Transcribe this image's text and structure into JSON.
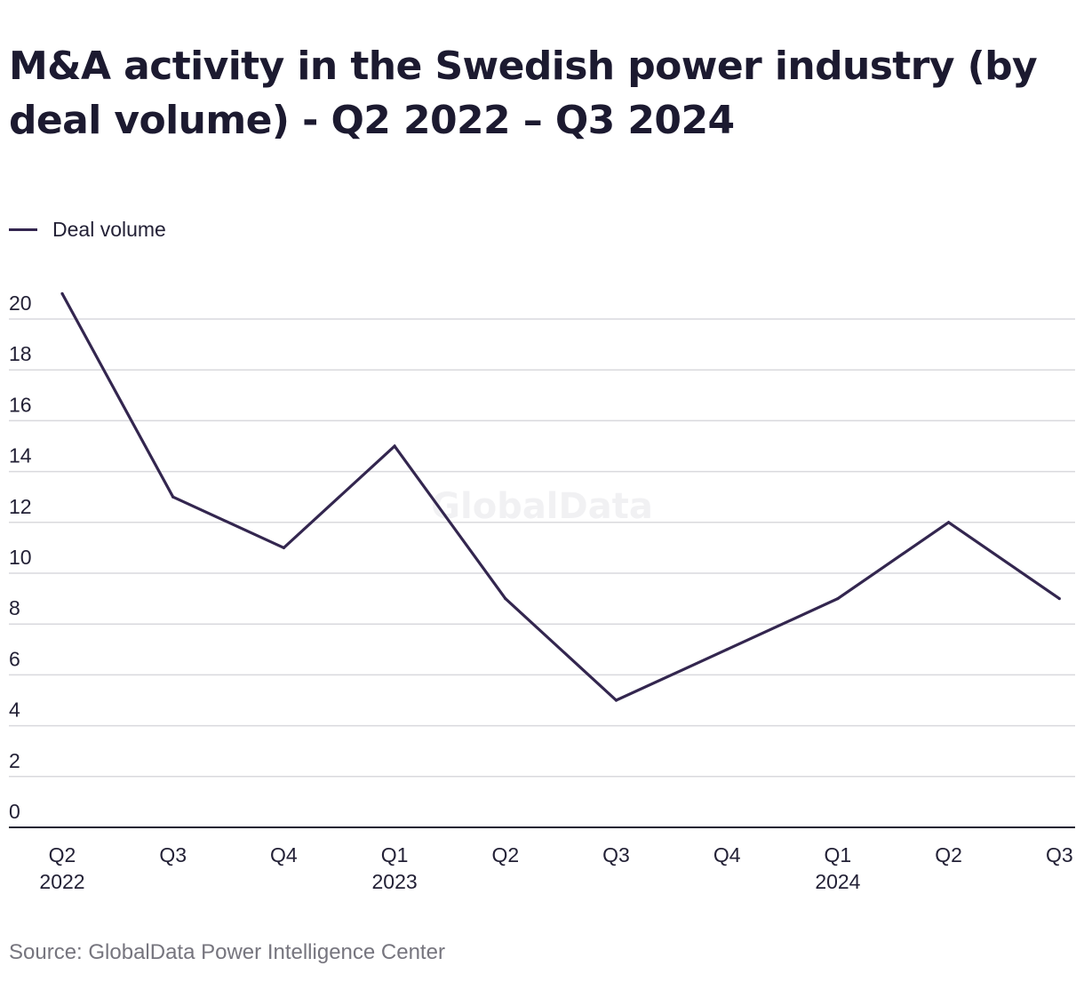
{
  "title": "M&A activity in the Swedish power industry (by deal volume) - Q2 2022 – Q3 2024",
  "legend": {
    "label": "Deal volume"
  },
  "watermark": "GlobalData",
  "source": "Source: GlobalData Power Intelligence Center",
  "colors": {
    "line": "#33264f",
    "grid": "#d9d9dd",
    "axis": "#1f1d33",
    "text": "#232136",
    "source": "#76757e"
  },
  "chart_data": {
    "type": "line",
    "categories": [
      {
        "quarter": "Q2",
        "year": "2022"
      },
      {
        "quarter": "Q3",
        "year": ""
      },
      {
        "quarter": "Q4",
        "year": ""
      },
      {
        "quarter": "Q1",
        "year": "2023"
      },
      {
        "quarter": "Q2",
        "year": ""
      },
      {
        "quarter": "Q3",
        "year": ""
      },
      {
        "quarter": "Q4",
        "year": ""
      },
      {
        "quarter": "Q1",
        "year": "2024"
      },
      {
        "quarter": "Q2",
        "year": ""
      },
      {
        "quarter": "Q3",
        "year": ""
      }
    ],
    "series": [
      {
        "name": "Deal volume",
        "values": [
          21,
          13,
          11,
          15,
          9,
          5,
          7,
          9,
          12,
          9
        ]
      }
    ],
    "ylim": [
      0,
      20
    ],
    "yticks": [
      0,
      2,
      4,
      6,
      8,
      10,
      12,
      14,
      16,
      18,
      20
    ],
    "grid": true,
    "legend_position": "top-left"
  }
}
